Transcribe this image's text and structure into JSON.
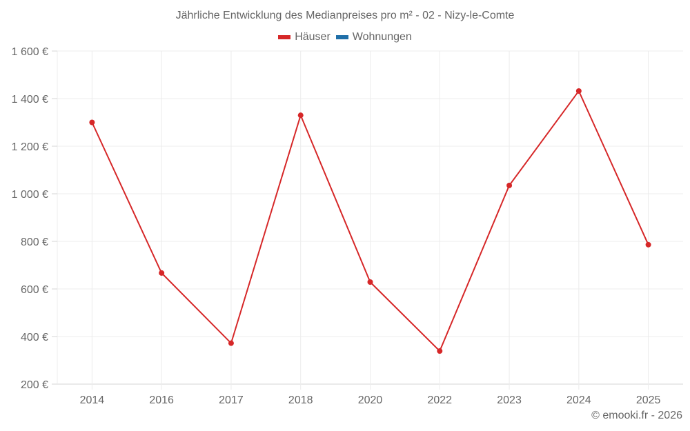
{
  "title": "Jährliche Entwicklung des Medianpreises pro m² - 02 - Nizy-le-Comte",
  "legend": [
    {
      "label": "Häuser",
      "color": "#d62728"
    },
    {
      "label": "Wohnungen",
      "color": "#1f6fa8"
    }
  ],
  "credit": "© emooki.fr - 2026",
  "chart_data": {
    "type": "line",
    "title": "Jährliche Entwicklung des Medianpreises pro m² - 02 - Nizy-le-Comte",
    "xlabel": "",
    "ylabel": "",
    "categories": [
      "2014",
      "2016",
      "2017",
      "2018",
      "2020",
      "2022",
      "2023",
      "2024",
      "2025"
    ],
    "series": [
      {
        "name": "Häuser",
        "color": "#d62728",
        "values": [
          1300,
          667,
          372,
          1330,
          629,
          339,
          1035,
          1432,
          786
        ]
      },
      {
        "name": "Wohnungen",
        "color": "#1f6fa8",
        "values": []
      }
    ],
    "ylim": [
      200,
      1600
    ],
    "yticks": [
      200,
      400,
      600,
      800,
      1000,
      1200,
      1400,
      1600
    ],
    "ytick_labels": [
      "200 €",
      "400 €",
      "600 €",
      "800 €",
      "1 000 €",
      "1 200 €",
      "1 400 €",
      "1 600 €"
    ],
    "grid": true,
    "legend_position": "top"
  }
}
